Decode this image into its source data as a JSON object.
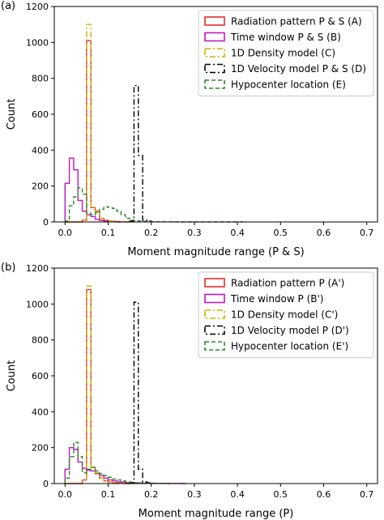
{
  "colors": {
    "A": "#e03030",
    "B": "#bf18bf",
    "C": "#c8b400",
    "D": "#000000",
    "E": "#2a8a2a"
  },
  "chart_data": [
    {
      "type": "histogram",
      "panel_label": "(a)",
      "xlabel": "Moment magnitude range (P & S)",
      "ylabel": "Count",
      "xlim": [
        -0.025,
        0.725
      ],
      "ylim": [
        0,
        1200
      ],
      "xticks": [
        0.0,
        0.1,
        0.2,
        0.3,
        0.4,
        0.5,
        0.6,
        0.7
      ],
      "yticks": [
        0,
        200,
        400,
        600,
        800,
        1000,
        1200
      ],
      "legend_position": "top-right",
      "bin_width": 0.01,
      "series": [
        {
          "key": "A",
          "name": "Radiation pattern P & S (A)",
          "linestyle": "solid",
          "bin_start": 0.0,
          "values": [
            0,
            0,
            0,
            0,
            10,
            1010,
            80,
            60,
            20,
            10,
            5,
            3,
            2,
            1,
            0
          ]
        },
        {
          "key": "B",
          "name": "Time window P & S (B)",
          "linestyle": "solid",
          "bin_start": 0.0,
          "values": [
            215,
            355,
            290,
            120,
            60,
            40,
            30,
            15,
            8,
            5,
            3,
            2,
            0
          ]
        },
        {
          "key": "C",
          "name": "1D Density model (C)",
          "linestyle": "dashdot",
          "bin_start": 0.0,
          "values": [
            0,
            0,
            0,
            0,
            10,
            1100,
            80,
            55,
            20,
            10,
            5,
            3,
            2,
            1,
            0
          ]
        },
        {
          "key": "D",
          "name": "1D Velocity model P & S (D)",
          "linestyle": "dashdot",
          "bin_start": 0.15,
          "values": [
            5,
            760,
            370,
            10,
            5
          ]
        },
        {
          "key": "E",
          "name": "Hypocenter location (E)",
          "linestyle": "dashed",
          "bin_start": 0.0,
          "values": [
            5,
            90,
            140,
            190,
            155,
            50,
            40,
            50,
            70,
            85,
            80,
            75,
            60,
            40,
            20,
            10,
            8,
            5,
            3,
            2,
            2,
            1,
            1,
            1,
            1,
            0,
            1,
            0,
            0,
            0,
            0,
            0,
            0,
            0,
            0,
            0,
            0,
            0,
            0,
            0,
            1,
            0
          ]
        }
      ]
    },
    {
      "type": "histogram",
      "panel_label": "(b)",
      "xlabel": "Moment magnitude range (P)",
      "ylabel": "Count",
      "xlim": [
        -0.025,
        0.725
      ],
      "ylim": [
        0,
        1200
      ],
      "xticks": [
        0.0,
        0.1,
        0.2,
        0.3,
        0.4,
        0.5,
        0.6,
        0.7
      ],
      "yticks": [
        0,
        200,
        400,
        600,
        800,
        1000,
        1200
      ],
      "legend_position": "top-right",
      "bin_width": 0.01,
      "series": [
        {
          "key": "A",
          "name": "Radiation pattern P (A')",
          "linestyle": "solid",
          "bin_start": 0.0,
          "values": [
            0,
            0,
            0,
            0,
            20,
            1080,
            90,
            60,
            30,
            15,
            8,
            4,
            2,
            1,
            0
          ]
        },
        {
          "key": "B",
          "name": "Time window P (B')",
          "linestyle": "solid",
          "bin_start": 0.0,
          "values": [
            80,
            200,
            190,
            120,
            85,
            75,
            70,
            55,
            45,
            30,
            20,
            15,
            10,
            8,
            5,
            5,
            3,
            3,
            2,
            2,
            2,
            1,
            1,
            1,
            1,
            1,
            1,
            0
          ]
        },
        {
          "key": "C",
          "name": "1D Density model (C')",
          "linestyle": "dashdot",
          "bin_start": 0.0,
          "values": [
            0,
            0,
            0,
            0,
            20,
            1100,
            90,
            60,
            30,
            15,
            8,
            4,
            2,
            1,
            0
          ]
        },
        {
          "key": "D",
          "name": "1D Velocity model P (D')",
          "linestyle": "dashdot",
          "bin_start": 0.15,
          "values": [
            5,
            1010,
            80,
            10,
            5
          ]
        },
        {
          "key": "E",
          "name": "Hypocenter location (E')",
          "linestyle": "dashed",
          "bin_start": 0.0,
          "values": [
            30,
            150,
            230,
            150,
            60,
            80,
            90,
            70,
            55,
            45,
            35,
            25,
            20,
            15,
            10,
            8,
            5,
            3,
            2,
            2,
            1,
            1,
            1,
            1,
            0
          ]
        }
      ]
    }
  ]
}
